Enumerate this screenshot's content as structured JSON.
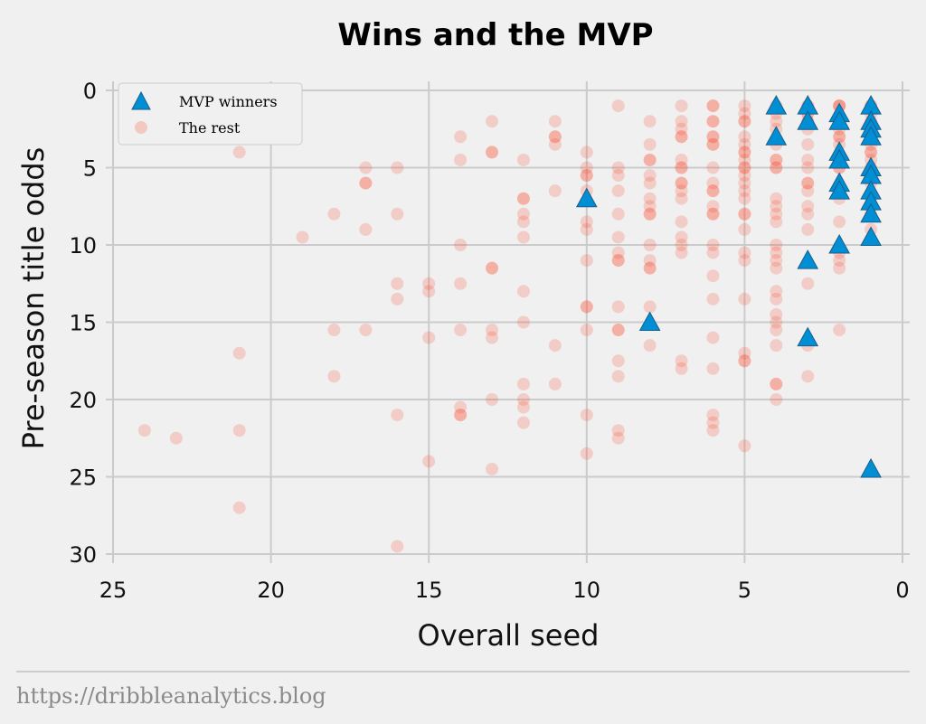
{
  "chart_data": {
    "type": "scatter",
    "title": "Wins and the MVP",
    "xlabel": "Overall seed",
    "ylabel": "Pre-season title odds",
    "xlim": [
      25,
      0
    ],
    "ylim": [
      30,
      0
    ],
    "x_inverted": true,
    "y_inverted": true,
    "xticks": [
      25,
      20,
      15,
      10,
      5,
      0
    ],
    "yticks": [
      0,
      5,
      10,
      15,
      20,
      25,
      30
    ],
    "grid": true,
    "legend_position": "top-left",
    "series": [
      {
        "name": "MVP winners",
        "marker": "triangle",
        "color": "#008fd5",
        "points": [
          [
            4,
            1
          ],
          [
            3,
            1
          ],
          [
            2,
            1.5
          ],
          [
            1,
            1
          ],
          [
            4,
            3
          ],
          [
            3,
            2
          ],
          [
            2,
            2
          ],
          [
            1,
            2
          ],
          [
            1,
            2.5
          ],
          [
            1,
            3
          ],
          [
            2,
            4
          ],
          [
            2,
            4.5
          ],
          [
            1,
            5
          ],
          [
            1,
            5.5
          ],
          [
            2,
            6
          ],
          [
            2,
            6.5
          ],
          [
            1,
            6.5
          ],
          [
            1,
            7.2
          ],
          [
            10,
            7
          ],
          [
            1,
            8
          ],
          [
            1,
            9.5
          ],
          [
            2,
            10
          ],
          [
            3,
            11
          ],
          [
            8,
            15
          ],
          [
            3,
            16
          ],
          [
            1,
            24.5
          ]
        ]
      },
      {
        "name": "The rest",
        "marker": "circle",
        "color": "#fc4f30",
        "points": [
          [
            24,
            22
          ],
          [
            23,
            22.5
          ],
          [
            21,
            4
          ],
          [
            21,
            17
          ],
          [
            21,
            22
          ],
          [
            21,
            27
          ],
          [
            19,
            9.5
          ],
          [
            18,
            8
          ],
          [
            18,
            15.5
          ],
          [
            18,
            18.5
          ],
          [
            17,
            5
          ],
          [
            17,
            6
          ],
          [
            17,
            6
          ],
          [
            17,
            9
          ],
          [
            17,
            15.5
          ],
          [
            16,
            5
          ],
          [
            16,
            8
          ],
          [
            16,
            12.5
          ],
          [
            16,
            13.5
          ],
          [
            16,
            21
          ],
          [
            16,
            29.5
          ],
          [
            15,
            12.5
          ],
          [
            15,
            13
          ],
          [
            15,
            16
          ],
          [
            15,
            24
          ],
          [
            14,
            3
          ],
          [
            14,
            4.5
          ],
          [
            14,
            10
          ],
          [
            14,
            12.5
          ],
          [
            14,
            15.5
          ],
          [
            14,
            20.5
          ],
          [
            14,
            21
          ],
          [
            14,
            21
          ],
          [
            13,
            2
          ],
          [
            13,
            4
          ],
          [
            13,
            4
          ],
          [
            13,
            11.5
          ],
          [
            13,
            11.5
          ],
          [
            13,
            15.5
          ],
          [
            13,
            16
          ],
          [
            13,
            20
          ],
          [
            13,
            24.5
          ],
          [
            12,
            4.5
          ],
          [
            12,
            7
          ],
          [
            12,
            7
          ],
          [
            12,
            8
          ],
          [
            12,
            8.5
          ],
          [
            12,
            9.5
          ],
          [
            12,
            13
          ],
          [
            12,
            15
          ],
          [
            12,
            19
          ],
          [
            12,
            20
          ],
          [
            12,
            20.5
          ],
          [
            12,
            21.5
          ],
          [
            11,
            2
          ],
          [
            11,
            3
          ],
          [
            11,
            3
          ],
          [
            11,
            3.5
          ],
          [
            11,
            6.5
          ],
          [
            11,
            16.5
          ],
          [
            11,
            19
          ],
          [
            10,
            4
          ],
          [
            10,
            5
          ],
          [
            10,
            5.5
          ],
          [
            10,
            5.5
          ],
          [
            10,
            6.5
          ],
          [
            10,
            8.5
          ],
          [
            10,
            9
          ],
          [
            10,
            11
          ],
          [
            10,
            14
          ],
          [
            10,
            14
          ],
          [
            10,
            15.5
          ],
          [
            10,
            21
          ],
          [
            10,
            23.5
          ],
          [
            9,
            1
          ],
          [
            9,
            5
          ],
          [
            9,
            5.5
          ],
          [
            9,
            6.5
          ],
          [
            9,
            8
          ],
          [
            9,
            9.5
          ],
          [
            9,
            10.5
          ],
          [
            9,
            11
          ],
          [
            9,
            11
          ],
          [
            9,
            14
          ],
          [
            9,
            15.5
          ],
          [
            9,
            15.5
          ],
          [
            9,
            17.5
          ],
          [
            9,
            18.5
          ],
          [
            9,
            22
          ],
          [
            9,
            22.5
          ],
          [
            8,
            2
          ],
          [
            8,
            3.5
          ],
          [
            8,
            4.5
          ],
          [
            8,
            4.5
          ],
          [
            8,
            5.5
          ],
          [
            8,
            6
          ],
          [
            8,
            7
          ],
          [
            8,
            7.5
          ],
          [
            8,
            8
          ],
          [
            8,
            8
          ],
          [
            8,
            10
          ],
          [
            8,
            11
          ],
          [
            8,
            11.5
          ],
          [
            8,
            11.5
          ],
          [
            8,
            14
          ],
          [
            8,
            16.5
          ],
          [
            7,
            1
          ],
          [
            7,
            2
          ],
          [
            7,
            2.5
          ],
          [
            7,
            3
          ],
          [
            7,
            3
          ],
          [
            7,
            4.5
          ],
          [
            7,
            5
          ],
          [
            7,
            5
          ],
          [
            7,
            6
          ],
          [
            7,
            6
          ],
          [
            7,
            6.5
          ],
          [
            7,
            7
          ],
          [
            7,
            8.5
          ],
          [
            7,
            9.5
          ],
          [
            7,
            10
          ],
          [
            7,
            10.5
          ],
          [
            7,
            17.5
          ],
          [
            7,
            18
          ],
          [
            6,
            1
          ],
          [
            6,
            1
          ],
          [
            6,
            2
          ],
          [
            6,
            2
          ],
          [
            6,
            3
          ],
          [
            6,
            3
          ],
          [
            6,
            3.5
          ],
          [
            6,
            3.5
          ],
          [
            6,
            5
          ],
          [
            6,
            6
          ],
          [
            6,
            6.5
          ],
          [
            6,
            6.5
          ],
          [
            6,
            7.5
          ],
          [
            6,
            8
          ],
          [
            6,
            8
          ],
          [
            6,
            10
          ],
          [
            6,
            10.5
          ],
          [
            6,
            12
          ],
          [
            6,
            13.5
          ],
          [
            6,
            16
          ],
          [
            6,
            18
          ],
          [
            6,
            21
          ],
          [
            6,
            21.5
          ],
          [
            6,
            22
          ],
          [
            5,
            1
          ],
          [
            5,
            1.5
          ],
          [
            5,
            2
          ],
          [
            5,
            2
          ],
          [
            5,
            3
          ],
          [
            5,
            3.5
          ],
          [
            5,
            4
          ],
          [
            5,
            4
          ],
          [
            5,
            4.5
          ],
          [
            5,
            5
          ],
          [
            5,
            5
          ],
          [
            5,
            5.5
          ],
          [
            5,
            6
          ],
          [
            5,
            6.5
          ],
          [
            5,
            7
          ],
          [
            5,
            8
          ],
          [
            5,
            8
          ],
          [
            5,
            9
          ],
          [
            5,
            10.5
          ],
          [
            5,
            11
          ],
          [
            5,
            13.5
          ],
          [
            5,
            17
          ],
          [
            5,
            17.5
          ],
          [
            5,
            17.5
          ],
          [
            5,
            23
          ],
          [
            4,
            1
          ],
          [
            4,
            1.5
          ],
          [
            4,
            2
          ],
          [
            4,
            2.5
          ],
          [
            4,
            3.5
          ],
          [
            4,
            4.5
          ],
          [
            4,
            4.5
          ],
          [
            4,
            5
          ],
          [
            4,
            5
          ],
          [
            4,
            7
          ],
          [
            4,
            7.5
          ],
          [
            4,
            8
          ],
          [
            4,
            8.5
          ],
          [
            4,
            10
          ],
          [
            4,
            10.5
          ],
          [
            4,
            11
          ],
          [
            4,
            11.5
          ],
          [
            4,
            13
          ],
          [
            4,
            13.5
          ],
          [
            4,
            14.5
          ],
          [
            4,
            15
          ],
          [
            4,
            15.5
          ],
          [
            4,
            16.5
          ],
          [
            4,
            19
          ],
          [
            4,
            19
          ],
          [
            4,
            20
          ],
          [
            3,
            1
          ],
          [
            3,
            1
          ],
          [
            3,
            1.5
          ],
          [
            3,
            1.5
          ],
          [
            3,
            2
          ],
          [
            3,
            2
          ],
          [
            3,
            2.5
          ],
          [
            3,
            3.5
          ],
          [
            3,
            4.5
          ],
          [
            3,
            5
          ],
          [
            3,
            6
          ],
          [
            3,
            6
          ],
          [
            3,
            6.5
          ],
          [
            3,
            7.5
          ],
          [
            3,
            8
          ],
          [
            3,
            9
          ],
          [
            3,
            12.5
          ],
          [
            3,
            16.5
          ],
          [
            3,
            18.5
          ],
          [
            2,
            1
          ],
          [
            2,
            1
          ],
          [
            2,
            1
          ],
          [
            2,
            2
          ],
          [
            2,
            2
          ],
          [
            2,
            2.5
          ],
          [
            2,
            3
          ],
          [
            2,
            3
          ],
          [
            2,
            3.5
          ],
          [
            2,
            5
          ],
          [
            2,
            5
          ],
          [
            2,
            6.5
          ],
          [
            2,
            7
          ],
          [
            2,
            8.5
          ],
          [
            2,
            10.5
          ],
          [
            2,
            11
          ],
          [
            2,
            11.5
          ],
          [
            2,
            15.5
          ],
          [
            1,
            1
          ],
          [
            1,
            1
          ],
          [
            1,
            1.5
          ],
          [
            1,
            2
          ],
          [
            1,
            2.5
          ],
          [
            1,
            3
          ],
          [
            1,
            3.5
          ],
          [
            1,
            4
          ],
          [
            1,
            4
          ],
          [
            1,
            4.5
          ],
          [
            1,
            5
          ],
          [
            1,
            6
          ],
          [
            1,
            7
          ],
          [
            1,
            7.5
          ],
          [
            1,
            8
          ],
          [
            1,
            9
          ]
        ]
      }
    ]
  },
  "footer": {
    "source_url": "https://dribbleanalytics.blog"
  }
}
